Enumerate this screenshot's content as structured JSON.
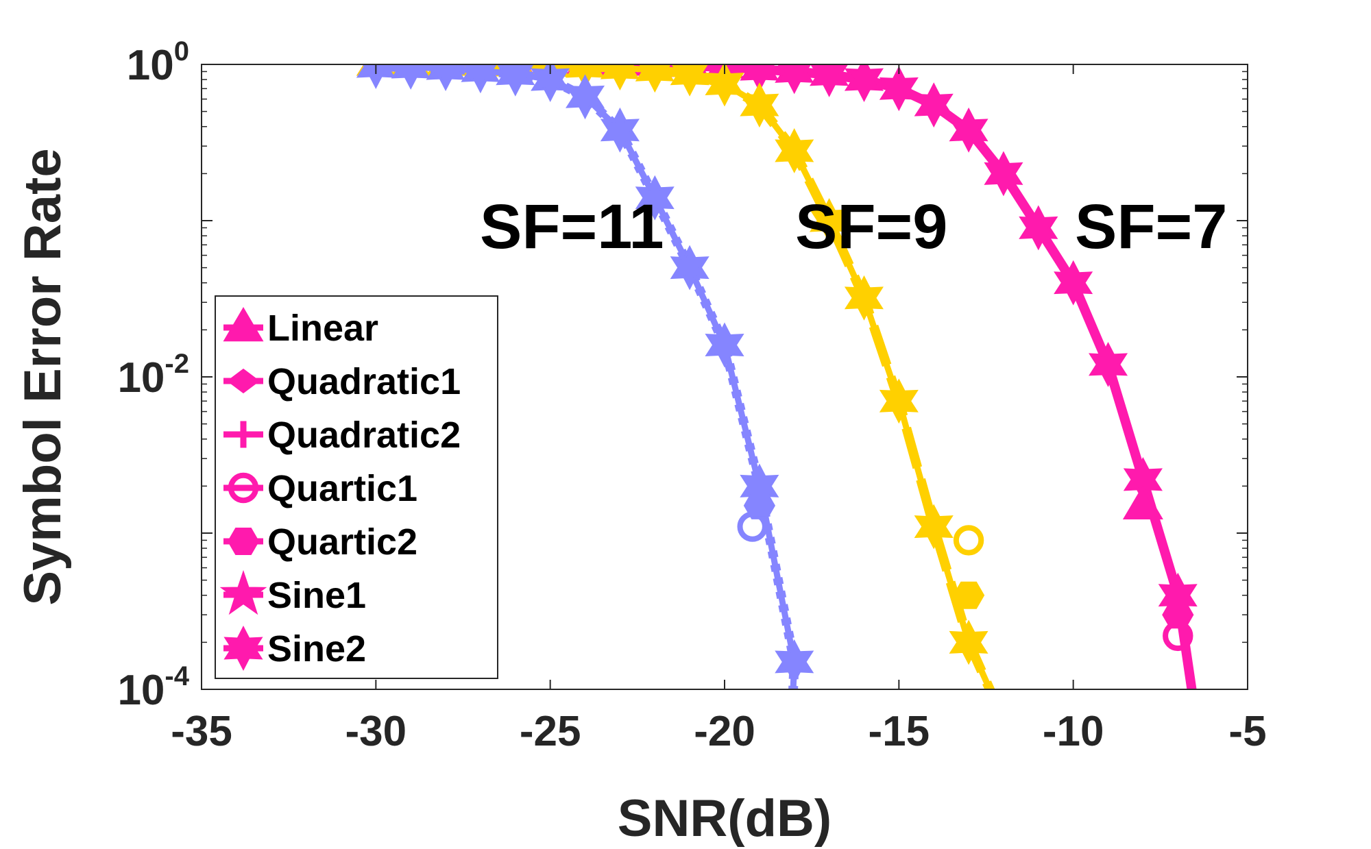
{
  "chart_data": {
    "type": "line",
    "xlabel": "SNR(dB)",
    "ylabel": "Symbol Error Rate",
    "xlim": [
      -35,
      -5
    ],
    "ylim": [
      0.0001,
      1
    ],
    "yscale": "log",
    "grid": false,
    "legend_position": "bottom-left",
    "x_ticks": [
      "-35",
      "-30",
      "-25",
      "-20",
      "-15",
      "-10",
      "-5"
    ],
    "y_ticks": [
      {
        "base": "10",
        "exp": "0"
      },
      {
        "base": "10",
        "exp": "-2"
      },
      {
        "base": "10",
        "exp": "-4"
      }
    ],
    "annotations": [
      {
        "text": "SF=11",
        "x": -26.5,
        "y": 0.1
      },
      {
        "text": "SF=9",
        "x": -17.5,
        "y": 0.1
      },
      {
        "text": "SF=7",
        "x": -10,
        "y": 0.1
      }
    ],
    "colors": {
      "SF7": "#ff1aad",
      "SF9": "#ffd000",
      "SF11": "#8585ff"
    },
    "legend": [
      {
        "label": "Linear",
        "marker": "triangle"
      },
      {
        "label": "Quadratic1",
        "marker": "diamond"
      },
      {
        "label": "Quadratic2",
        "marker": "plus"
      },
      {
        "label": "Quartic1",
        "marker": "circle"
      },
      {
        "label": "Quartic2",
        "marker": "hexagon"
      },
      {
        "label": "Sine1",
        "marker": "pentagram"
      },
      {
        "label": "Sine2",
        "marker": "hexagram"
      }
    ],
    "groups": [
      {
        "name": "SF=7",
        "color": "#ff1aad",
        "x": [
          -30,
          -29,
          -28,
          -27,
          -26,
          -25,
          -24,
          -23,
          -22,
          -21,
          -20,
          -19,
          -18,
          -17,
          -16,
          -15,
          -14,
          -13,
          -12,
          -11,
          -10,
          -9,
          -8,
          -7
        ],
        "y": [
          1,
          1,
          1,
          1,
          1,
          1,
          1,
          1,
          1,
          0.98,
          0.96,
          0.93,
          0.9,
          0.86,
          0.8,
          0.7,
          0.55,
          0.38,
          0.2,
          0.09,
          0.04,
          0.012,
          0.0022,
          0.0004
        ],
        "tail": {
          "x": [
            -7,
            -6.5
          ],
          "y": [
            0.0004,
            7e-05
          ]
        },
        "series_points": [
          {
            "series": "Linear",
            "x": [
              -8
            ],
            "y": [
              0.0015
            ]
          },
          {
            "series": "Quartic1",
            "x": [
              -7
            ],
            "y": [
              0.00022
            ]
          },
          {
            "series": "Quartic2",
            "x": [
              -7
            ],
            "y": [
              0.0003
            ]
          }
        ]
      },
      {
        "name": "SF=9",
        "color": "#ffd000",
        "x": [
          -30,
          -29,
          -28,
          -27,
          -26,
          -25,
          -24,
          -23,
          -22,
          -21,
          -20,
          -19,
          -18,
          -17,
          -16,
          -15,
          -14,
          -13
        ],
        "y": [
          1,
          1,
          1,
          1,
          0.99,
          0.98,
          0.97,
          0.95,
          0.92,
          0.87,
          0.75,
          0.55,
          0.28,
          0.1,
          0.032,
          0.007,
          0.0011,
          0.0002
        ],
        "tail": {
          "x": [
            -13,
            -12.2
          ],
          "y": [
            0.0002,
            8e-05
          ]
        },
        "series_points": [
          {
            "series": "Quartic1",
            "x": [
              -13,
              -12.2
            ],
            "y": [
              0.0009,
              8e-05
            ]
          },
          {
            "series": "Quartic2",
            "x": [
              -13
            ],
            "y": [
              0.0004
            ]
          }
        ]
      },
      {
        "name": "SF=11",
        "color": "#8585ff",
        "x": [
          -30,
          -29,
          -28,
          -27,
          -26,
          -25,
          -24,
          -23,
          -22,
          -21,
          -20,
          -19,
          -18
        ],
        "y": [
          0.97,
          0.96,
          0.94,
          0.91,
          0.87,
          0.8,
          0.62,
          0.38,
          0.14,
          0.05,
          0.016,
          0.002,
          0.00015
        ],
        "tail": {
          "x": [
            -18,
            -18.05
          ],
          "y": [
            0.00015,
            8e-05
          ]
        },
        "series_points": [
          {
            "series": "Quartic1",
            "x": [
              -19.2
            ],
            "y": [
              0.0011
            ]
          },
          {
            "series": "Quartic2",
            "x": [
              -19
            ],
            "y": [
              0.0015
            ]
          }
        ]
      }
    ]
  }
}
